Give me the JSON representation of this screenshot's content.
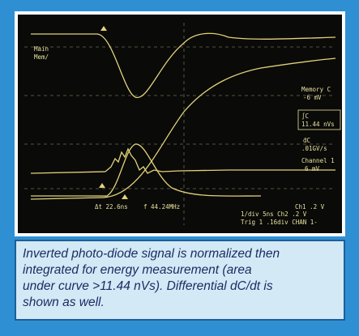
{
  "screen": {
    "labels": {
      "main": "Main",
      "mem": "Mem/",
      "memory": "Memory C",
      "memory_value": "-6 mV",
      "integral": "∫C",
      "integral_value": "11.44 nVs",
      "derivative": "ḋC",
      "derivative_value": ".01GV/s",
      "channel": "Channel 1",
      "channel_value": "6 mV",
      "ch1": "Ch1  .2 V",
      "ch2": "1/div  5ns  Ch2  .2 V",
      "trig": "Trig 1  .16div  CHAN 1-",
      "delta_t": "Δt 22.6ns",
      "freq": "f 44.24MHz"
    }
  },
  "caption": {
    "lines": [
      "Inverted photo-diode signal is normalized then",
      "integrated for energy measurement (area",
      "under curve >11.44 nVs). Differential dC/dt is",
      "shown as well."
    ]
  }
}
